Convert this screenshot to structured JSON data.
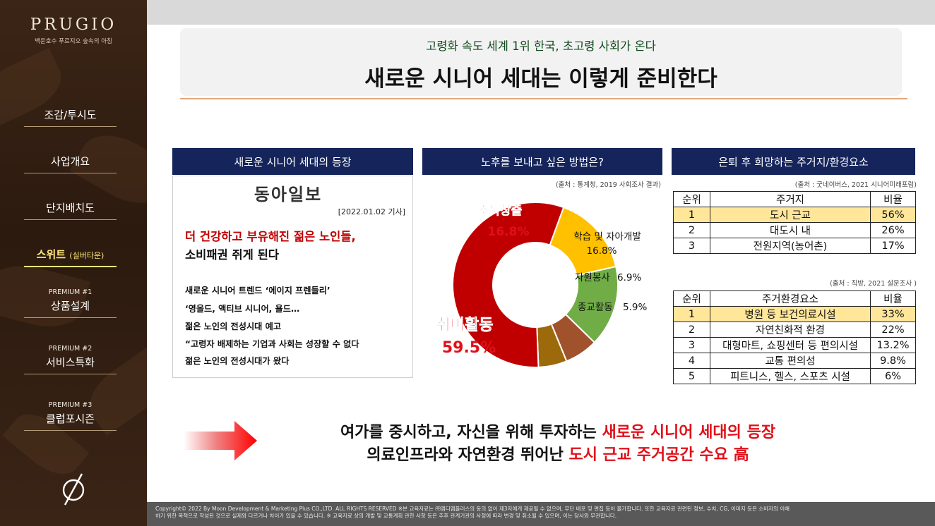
{
  "brand": {
    "name": "PRUGIO",
    "tagline": "백운호수 푸르지오 숲속의 아침"
  },
  "nav": [
    {
      "label": "조감/투시도"
    },
    {
      "label": "사업개요"
    },
    {
      "label": "단지배치도"
    },
    {
      "label": "스위트",
      "small": "(실버타운)",
      "active": true
    },
    {
      "pre": "PREMIUM #1",
      "label": "상품설계"
    },
    {
      "pre": "PREMIUM #2",
      "label": "서비스특화"
    },
    {
      "pre": "PREMIUM #3",
      "label": "클럽포시즌"
    }
  ],
  "header": {
    "subtitle": "고령화 속도 세계 1위 한국, 초고령 사회가 온다",
    "title": "새로운 시니어 세대는 이렇게 준비한다"
  },
  "panels": {
    "news_title": "새로운 시니어 세대의 등장",
    "chart_title": "노후를 보내고 싶은 방법은?",
    "housing_title": "은퇴 후 희망하는 주거지/환경요소"
  },
  "news": {
    "logo": "동아일보",
    "date": "[2022.01.02 기사]",
    "headline_red": "더 건강하고 부유해진 젊은 노인들,",
    "headline_black": "소비패권 쥐게 된다",
    "lines": [
      " 새로운 시니어 트렌드 ‘에이지 프렌들리’",
      "‘영올드, 액티브 시니어, 욜드…",
      "젊은 노인의 전성시대 예고",
      "“고령자 배제하는 기업과 사회는 성장할 수 없다",
      "젊은 노인의 전성시대가 왔다"
    ]
  },
  "chart_source": "(출처 : 통계청, 2019 사회조사 결과)",
  "chart_data": {
    "type": "pie",
    "donut": true,
    "title": "노후를 보내고 싶은 방법은?",
    "slices": [
      {
        "label": "소득창출",
        "value": 16.8,
        "display": "16.8%",
        "color": "#ffc000"
      },
      {
        "label": "학습 및 자아개발",
        "value": 16.8,
        "display": "16.8%",
        "color": "#70ad47"
      },
      {
        "label": "자원봉사",
        "value": 6.9,
        "display": "6.9%",
        "color": "#a0522d"
      },
      {
        "label": "종교활동",
        "value": 5.9,
        "display": "5.9%",
        "color": "#9c6a0b"
      },
      {
        "label": "취미활동",
        "value": 59.5,
        "display": "59.5%",
        "color": "#c00000"
      }
    ]
  },
  "housing": {
    "source": "(출처 : 굿네이버스, 2021 시니어미래포럼)",
    "headers": [
      "순위",
      "주거지",
      "비율"
    ],
    "rows": [
      [
        "1",
        "도시 근교",
        "56%"
      ],
      [
        "2",
        "대도시 내",
        "26%"
      ],
      [
        "3",
        "전원지역(농어촌)",
        "17%"
      ]
    ]
  },
  "environment": {
    "source": "(출처 : 직방, 2021 설문조사 )",
    "headers": [
      "순위",
      "주거환경요소",
      "비율"
    ],
    "rows": [
      [
        "1",
        "병원 등 보건의료시설",
        "33%"
      ],
      [
        "2",
        "자연친화적 환경",
        "22%"
      ],
      [
        "3",
        "대형마트, 쇼핑센터 등 편의시설",
        "13.2%"
      ],
      [
        "4",
        "교통 편의성",
        "9.8%"
      ],
      [
        "5",
        "피트니스, 헬스, 스포츠 시설",
        "6%"
      ]
    ]
  },
  "summary": {
    "line1_black": "여가를 중시하고, 자신을 위해 투자하는 ",
    "line1_red": "새로운 시니어 세대의 등장",
    "line2_black": "의료인프라와 자연환경 뛰어난 ",
    "line2_red": "도시 근교 주거공간 수요 高"
  },
  "footer": {
    "line1": "Copyright© 2022 By Moon Development & Marketing Plus CO.,LTD. ALL RIGHTS RESERVED  ※본 교육자료는 ㈜엠디엠플러스의 동의 없이 제3자에게 제공될 수 없으며, 무단 배포 및 편집 등이 불가합니다. 또한 교육자료 관련된 정보, 수치, CG, 이미지 등은 소비자의 이해",
    "line2": "하기 위한 목적으로 작성된 것으로 실제와 다르거나 차이가 있을 수 있습니다. ※ 교육자료 상의 개발 및 교통계획 관한 사항 등은 추후 관계기관의 사정에 따라 변경 및 취소될 수 있으며, 이는 당사와 무관합니다."
  }
}
